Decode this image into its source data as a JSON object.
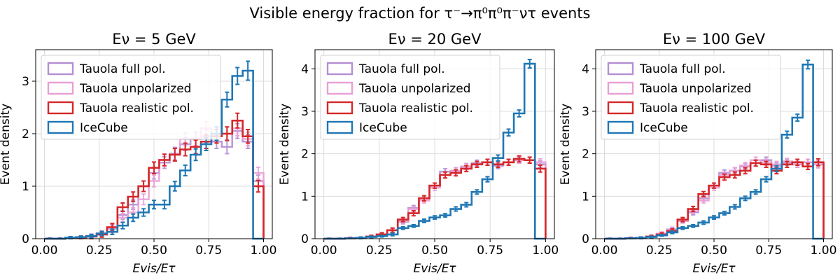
{
  "figure": {
    "suptitle": "Visible energy fraction for τ⁻→π⁰π⁰π⁻ντ events"
  },
  "colors": {
    "Tauola full pol.": "#b48fd1",
    "Tauola unpolarized": "#e99ed6",
    "Tauola realistic pol.": "#d62728",
    "IceCube": "#1f77b4"
  },
  "chart_data": [
    {
      "type": "histogram",
      "title": "Eν = 5 GeV",
      "xlabel": "Evis/Eτ",
      "ylabel": "Event density",
      "xlim": [
        -0.04,
        1.04
      ],
      "ylim": [
        0,
        3.6
      ],
      "xticks": [
        0.0,
        0.25,
        0.5,
        0.75,
        1.0
      ],
      "xtick_labels": [
        "0.00",
        "0.25",
        "0.50",
        "0.75",
        "1.00"
      ],
      "yticks": [
        0,
        1,
        2,
        3
      ],
      "grid": true,
      "legend": "upper-left",
      "bin_edges": [
        0.0,
        0.0476,
        0.0952,
        0.1429,
        0.1905,
        0.2381,
        0.2857,
        0.3333,
        0.381,
        0.4286,
        0.4762,
        0.5238,
        0.5714,
        0.619,
        0.6667,
        0.7143,
        0.7619,
        0.8095,
        0.8571,
        0.9048,
        0.9524,
        1.0
      ],
      "series": [
        {
          "name": "Tauola full pol.",
          "values": [
            0.0,
            0.0,
            0.01,
            0.02,
            0.05,
            0.08,
            0.2,
            0.45,
            0.65,
            1.0,
            1.25,
            1.45,
            1.62,
            1.8,
            1.9,
            1.95,
            1.85,
            1.75,
            2.05,
            1.85,
            1.1
          ],
          "errors": [
            0.01,
            0.01,
            0.02,
            0.03,
            0.04,
            0.05,
            0.07,
            0.08,
            0.09,
            0.1,
            0.11,
            0.11,
            0.12,
            0.12,
            0.13,
            0.13,
            0.13,
            0.13,
            0.14,
            0.13,
            0.11
          ]
        },
        {
          "name": "Tauola unpolarized",
          "values": [
            0.0,
            0.0,
            0.01,
            0.02,
            0.04,
            0.1,
            0.18,
            0.4,
            0.5,
            0.75,
            1.1,
            1.5,
            1.6,
            1.9,
            1.9,
            2.1,
            2.0,
            2.0,
            2.1,
            1.9,
            1.25
          ],
          "errors": [
            0.01,
            0.01,
            0.02,
            0.03,
            0.04,
            0.05,
            0.07,
            0.08,
            0.09,
            0.1,
            0.11,
            0.11,
            0.12,
            0.12,
            0.13,
            0.13,
            0.13,
            0.13,
            0.14,
            0.13,
            0.11
          ]
        },
        {
          "name": "Tauola realistic pol.",
          "values": [
            0.0,
            0.0,
            0.01,
            0.02,
            0.04,
            0.08,
            0.22,
            0.6,
            0.8,
            1.0,
            1.35,
            1.5,
            1.6,
            1.7,
            1.75,
            1.85,
            1.95,
            2.0,
            2.25,
            1.95,
            1.0
          ],
          "errors": [
            0.01,
            0.01,
            0.02,
            0.03,
            0.04,
            0.05,
            0.07,
            0.08,
            0.09,
            0.1,
            0.11,
            0.11,
            0.12,
            0.12,
            0.13,
            0.13,
            0.13,
            0.13,
            0.14,
            0.13,
            0.11
          ]
        },
        {
          "name": "IceCube",
          "values": [
            0.0,
            0.0,
            0.02,
            0.03,
            0.05,
            0.1,
            0.13,
            0.25,
            0.4,
            0.5,
            0.65,
            0.65,
            1.0,
            1.3,
            1.6,
            1.8,
            2.0,
            2.65,
            3.1,
            3.2,
            0.0
          ],
          "errors": [
            0.01,
            0.01,
            0.02,
            0.02,
            0.03,
            0.04,
            0.05,
            0.06,
            0.07,
            0.07,
            0.08,
            0.08,
            0.09,
            0.1,
            0.11,
            0.12,
            0.13,
            0.14,
            0.16,
            0.18,
            0.0
          ]
        }
      ]
    },
    {
      "type": "histogram",
      "title": "Eν = 20 GeV",
      "xlabel": "Evis/Eτ",
      "ylabel": "Event density",
      "xlim": [
        -0.04,
        1.04
      ],
      "ylim": [
        0,
        4.45
      ],
      "xticks": [
        0.0,
        0.25,
        0.5,
        0.75,
        1.0
      ],
      "xtick_labels": [
        "0.00",
        "0.25",
        "0.50",
        "0.75",
        "1.00"
      ],
      "yticks": [
        0,
        1,
        2,
        3,
        4
      ],
      "grid": true,
      "legend": "upper-left",
      "bin_edges": [
        0.0,
        0.0476,
        0.0952,
        0.1429,
        0.1905,
        0.2381,
        0.2857,
        0.3333,
        0.381,
        0.4286,
        0.4762,
        0.5238,
        0.5714,
        0.619,
        0.6667,
        0.7143,
        0.7619,
        0.8095,
        0.8571,
        0.9048,
        0.9524,
        1.0
      ],
      "series": [
        {
          "name": "Tauola full pol.",
          "values": [
            0.0,
            0.0,
            0.01,
            0.02,
            0.05,
            0.1,
            0.2,
            0.4,
            0.72,
            0.95,
            1.25,
            1.58,
            1.6,
            1.7,
            1.78,
            1.8,
            1.72,
            1.8,
            1.85,
            1.85,
            1.75
          ],
          "errors": [
            0.01,
            0.01,
            0.02,
            0.02,
            0.03,
            0.04,
            0.05,
            0.05,
            0.06,
            0.06,
            0.06,
            0.07,
            0.07,
            0.07,
            0.07,
            0.07,
            0.07,
            0.07,
            0.07,
            0.07,
            0.08
          ]
        },
        {
          "name": "Tauola unpolarized",
          "values": [
            0.0,
            0.0,
            0.01,
            0.02,
            0.05,
            0.1,
            0.2,
            0.42,
            0.7,
            0.9,
            1.2,
            1.5,
            1.6,
            1.7,
            1.75,
            1.8,
            1.75,
            1.8,
            1.85,
            1.85,
            1.8
          ],
          "errors": [
            0.01,
            0.01,
            0.02,
            0.02,
            0.03,
            0.04,
            0.05,
            0.05,
            0.06,
            0.06,
            0.06,
            0.07,
            0.07,
            0.07,
            0.07,
            0.07,
            0.07,
            0.07,
            0.07,
            0.07,
            0.08
          ]
        },
        {
          "name": "Tauola realistic pol.",
          "values": [
            0.0,
            0.0,
            0.01,
            0.02,
            0.05,
            0.1,
            0.2,
            0.45,
            0.6,
            0.95,
            1.25,
            1.5,
            1.55,
            1.65,
            1.75,
            1.8,
            1.75,
            1.8,
            1.88,
            1.85,
            1.65
          ],
          "errors": [
            0.01,
            0.01,
            0.02,
            0.02,
            0.03,
            0.04,
            0.05,
            0.05,
            0.06,
            0.06,
            0.06,
            0.07,
            0.07,
            0.07,
            0.07,
            0.07,
            0.07,
            0.07,
            0.07,
            0.07,
            0.08
          ]
        },
        {
          "name": "IceCube",
          "values": [
            0.0,
            0.0,
            0.01,
            0.02,
            0.04,
            0.06,
            0.1,
            0.25,
            0.3,
            0.42,
            0.5,
            0.55,
            0.7,
            0.8,
            1.1,
            1.4,
            1.9,
            2.5,
            2.95,
            4.12,
            0.0
          ],
          "errors": [
            0.01,
            0.01,
            0.01,
            0.02,
            0.02,
            0.02,
            0.03,
            0.03,
            0.03,
            0.04,
            0.04,
            0.04,
            0.05,
            0.05,
            0.05,
            0.06,
            0.07,
            0.08,
            0.08,
            0.1,
            0.0
          ]
        }
      ]
    },
    {
      "type": "histogram",
      "title": "Eν = 100 GeV",
      "xlabel": "Evis/Eτ",
      "ylabel": "Event density",
      "xlim": [
        -0.04,
        1.04
      ],
      "ylim": [
        0,
        4.45
      ],
      "xticks": [
        0.0,
        0.25,
        0.5,
        0.75,
        1.0
      ],
      "xtick_labels": [
        "0.00",
        "0.25",
        "0.50",
        "0.75",
        "1.00"
      ],
      "yticks": [
        0,
        1,
        2,
        3,
        4
      ],
      "grid": true,
      "legend": "upper-left",
      "bin_edges": [
        0.0,
        0.0476,
        0.0952,
        0.1429,
        0.1905,
        0.2381,
        0.2857,
        0.3333,
        0.381,
        0.4286,
        0.4762,
        0.5238,
        0.5714,
        0.619,
        0.6667,
        0.7143,
        0.7619,
        0.8095,
        0.8571,
        0.9048,
        0.9524,
        1.0
      ],
      "series": [
        {
          "name": "Tauola full pol.",
          "values": [
            0.0,
            0.0,
            0.01,
            0.02,
            0.05,
            0.1,
            0.22,
            0.42,
            0.62,
            0.95,
            1.25,
            1.55,
            1.6,
            1.7,
            1.78,
            1.85,
            1.72,
            1.8,
            1.75,
            1.8,
            1.75
          ],
          "errors": [
            0.01,
            0.01,
            0.02,
            0.02,
            0.03,
            0.04,
            0.05,
            0.05,
            0.06,
            0.06,
            0.06,
            0.07,
            0.07,
            0.07,
            0.07,
            0.07,
            0.07,
            0.07,
            0.07,
            0.07,
            0.08
          ]
        },
        {
          "name": "Tauola unpolarized",
          "values": [
            0.0,
            0.0,
            0.01,
            0.02,
            0.05,
            0.12,
            0.2,
            0.42,
            0.65,
            0.9,
            1.2,
            1.5,
            1.6,
            1.72,
            1.85,
            1.8,
            1.75,
            1.82,
            1.75,
            1.8,
            1.75
          ],
          "errors": [
            0.01,
            0.01,
            0.02,
            0.02,
            0.03,
            0.04,
            0.05,
            0.05,
            0.06,
            0.06,
            0.06,
            0.07,
            0.07,
            0.07,
            0.07,
            0.07,
            0.07,
            0.07,
            0.07,
            0.07,
            0.08
          ]
        },
        {
          "name": "Tauola realistic pol.",
          "values": [
            0.0,
            0.0,
            0.01,
            0.02,
            0.05,
            0.1,
            0.18,
            0.45,
            0.7,
            1.05,
            1.25,
            1.45,
            1.5,
            1.6,
            1.78,
            1.75,
            1.6,
            1.75,
            1.8,
            1.7,
            1.8
          ],
          "errors": [
            0.01,
            0.01,
            0.02,
            0.02,
            0.03,
            0.04,
            0.05,
            0.05,
            0.06,
            0.06,
            0.06,
            0.07,
            0.07,
            0.07,
            0.07,
            0.07,
            0.07,
            0.07,
            0.07,
            0.07,
            0.08
          ]
        },
        {
          "name": "IceCube",
          "values": [
            0.0,
            0.0,
            0.01,
            0.02,
            0.04,
            0.08,
            0.15,
            0.25,
            0.3,
            0.38,
            0.5,
            0.6,
            0.75,
            0.95,
            1.1,
            1.4,
            1.65,
            2.45,
            2.85,
            4.1,
            0.0
          ],
          "errors": [
            0.01,
            0.01,
            0.01,
            0.02,
            0.02,
            0.02,
            0.03,
            0.03,
            0.03,
            0.04,
            0.04,
            0.04,
            0.05,
            0.05,
            0.05,
            0.06,
            0.07,
            0.08,
            0.08,
            0.1,
            0.0
          ]
        }
      ]
    }
  ]
}
